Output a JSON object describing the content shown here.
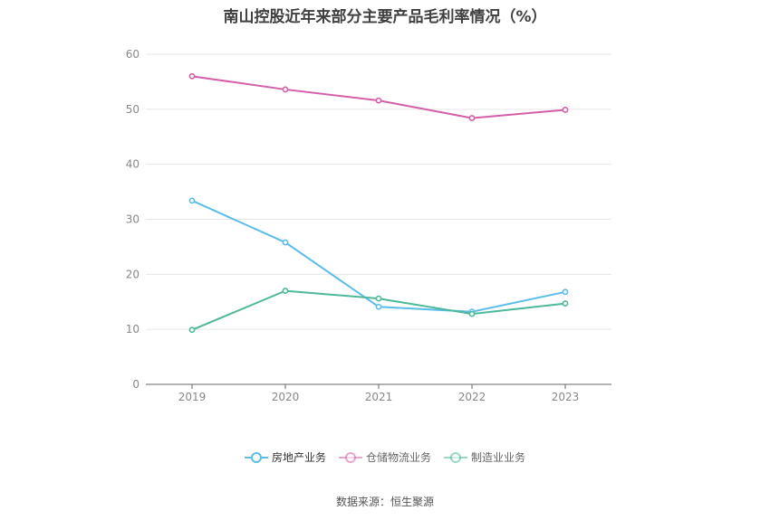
{
  "chart_data": {
    "type": "line",
    "title": "南山控股近年来部分主要产品毛利率情况（%）",
    "categories": [
      "2019",
      "2020",
      "2021",
      "2022",
      "2023"
    ],
    "ylim": [
      0,
      60
    ],
    "yticks": [
      0,
      10,
      20,
      30,
      40,
      50,
      60
    ],
    "grid": true,
    "legend_position": "bottom",
    "series": [
      {
        "name": "房地产业务",
        "color": "#5bbde9",
        "values": [
          33.4,
          25.8,
          14.1,
          13.2,
          16.8
        ]
      },
      {
        "name": "仓储物流业务",
        "color": "#d45fa9",
        "values": [
          56.0,
          53.6,
          51.6,
          48.4,
          49.9
        ]
      },
      {
        "name": "制造业业务",
        "color": "#4db89a",
        "values": [
          9.9,
          17.0,
          15.6,
          12.8,
          14.7
        ]
      }
    ],
    "source": "数据来源：恒生聚源"
  }
}
